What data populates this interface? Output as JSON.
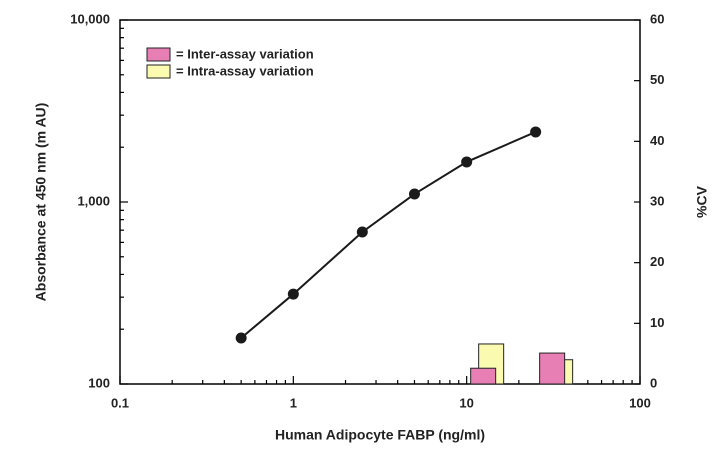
{
  "chart_data": {
    "type": "line",
    "x_label": "Human Adipocyte FABP (ng/ml)",
    "y_label": "Absorbance at 450 nm (m AU)",
    "y2_label": "%CV",
    "x_log": true,
    "y_log": true,
    "xlim": [
      0.1,
      100
    ],
    "xticks": [
      0.1,
      1,
      10,
      100
    ],
    "ylim": [
      100,
      10000
    ],
    "yticks": [
      {
        "value": 100,
        "label": "100"
      },
      {
        "value": 1000,
        "label": "1,000"
      },
      {
        "value": 10000,
        "label": "10,000"
      }
    ],
    "y2lim": [
      0,
      60
    ],
    "y2ticks": [
      0,
      10,
      20,
      30,
      40,
      50,
      60
    ],
    "legend": "upper left",
    "series": [
      {
        "type": "line",
        "color": "#1a1a1a",
        "x": [
          0.5,
          1,
          2.5,
          5,
          10,
          25
        ],
        "values": [
          179,
          312,
          684,
          1106,
          1660,
          2426
        ]
      },
      {
        "type": "bar",
        "name": "= Intra-assay variation",
        "axis": "y2",
        "color": "#fafab0",
        "x": [
          10,
          25
        ],
        "values": [
          6.6,
          4.0
        ]
      },
      {
        "type": "bar",
        "name": "= Inter-assay variation",
        "axis": "y2",
        "color": "#e77fb5",
        "x": [
          10,
          25
        ],
        "values": [
          2.6,
          5.1
        ]
      }
    ]
  }
}
